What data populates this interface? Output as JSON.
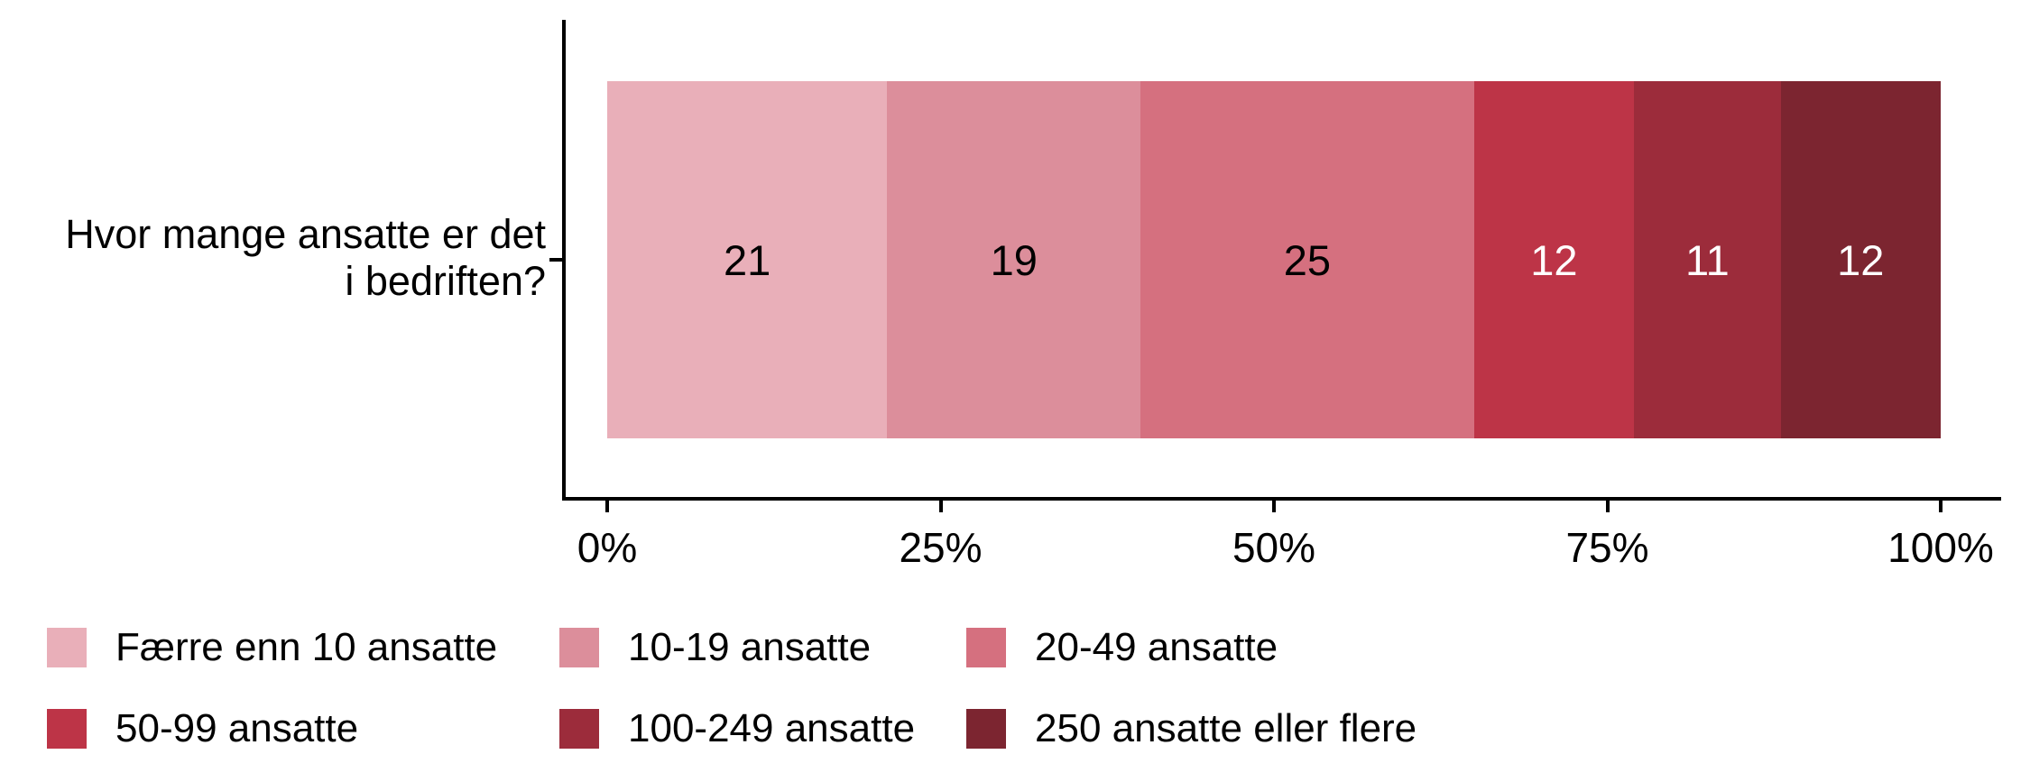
{
  "chart_data": {
    "type": "bar",
    "stacked": true,
    "orientation": "horizontal",
    "question_label_lines": [
      "Hvor mange ansatte er det",
      "i bedriften?"
    ],
    "categories": [
      "Færre enn 10 ansatte",
      "10-19 ansatte",
      "20-49 ansatte",
      "50-99 ansatte",
      "100-249 ansatte",
      "250 ansatte eller flere"
    ],
    "series": [
      {
        "name": "Færre enn 10 ansatte",
        "value": 21,
        "color": "#E9AFB9",
        "label_color": "#000000"
      },
      {
        "name": "10-19 ansatte",
        "value": 19,
        "color": "#DC8E9B",
        "label_color": "#000000"
      },
      {
        "name": "20-49 ansatte",
        "value": 25,
        "color": "#D5707F",
        "label_color": "#000000"
      },
      {
        "name": "50-99 ansatte",
        "value": 12,
        "color": "#BD3447",
        "label_color": "#FFFFFF"
      },
      {
        "name": "100-249 ansatte",
        "value": 11,
        "color": "#9C2C3B",
        "label_color": "#FFFFFF"
      },
      {
        "name": "250 ansatte eller flere",
        "value": 12,
        "color": "#7C2530",
        "label_color": "#FFFFFF"
      }
    ],
    "values": [
      21,
      19,
      25,
      12,
      11,
      12
    ],
    "x_axis": {
      "range": [
        0,
        100
      ],
      "ticks": [
        {
          "value": 0,
          "label": "0%"
        },
        {
          "value": 25,
          "label": "25%"
        },
        {
          "value": 50,
          "label": "50%"
        },
        {
          "value": 75,
          "label": "75%"
        },
        {
          "value": 100,
          "label": "100%"
        }
      ]
    },
    "legend_position": "bottom",
    "legend_columns": 3,
    "axis_color": "#000000",
    "text_color": "#000000",
    "grid": false
  }
}
